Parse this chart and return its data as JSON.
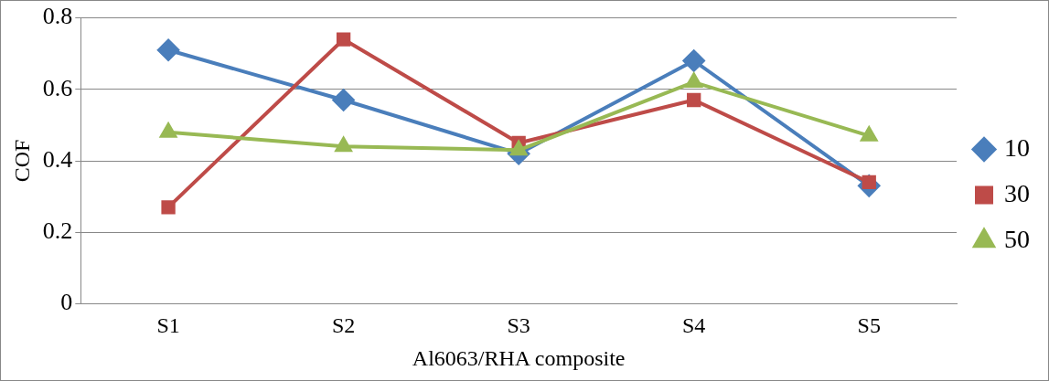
{
  "chart_data": {
    "type": "line",
    "xlabel": "Al6063/RHA composite",
    "ylabel": "COF",
    "categories": [
      "S1",
      "S2",
      "S3",
      "S4",
      "S5"
    ],
    "series": [
      {
        "name": "10",
        "color": "#4a7ebb",
        "marker": "diamond",
        "values": [
          0.71,
          0.57,
          0.42,
          0.68,
          0.33
        ]
      },
      {
        "name": "30",
        "color": "#be4b48",
        "marker": "square",
        "values": [
          0.27,
          0.74,
          0.45,
          0.57,
          0.34
        ]
      },
      {
        "name": "50",
        "color": "#98b954",
        "marker": "triangle",
        "values": [
          0.48,
          0.44,
          0.43,
          0.62,
          0.47
        ]
      }
    ],
    "ylim": [
      0,
      0.8
    ],
    "yticks": [
      0,
      0.2,
      0.4,
      0.6,
      0.8
    ],
    "grid": "y",
    "legend": "right"
  }
}
